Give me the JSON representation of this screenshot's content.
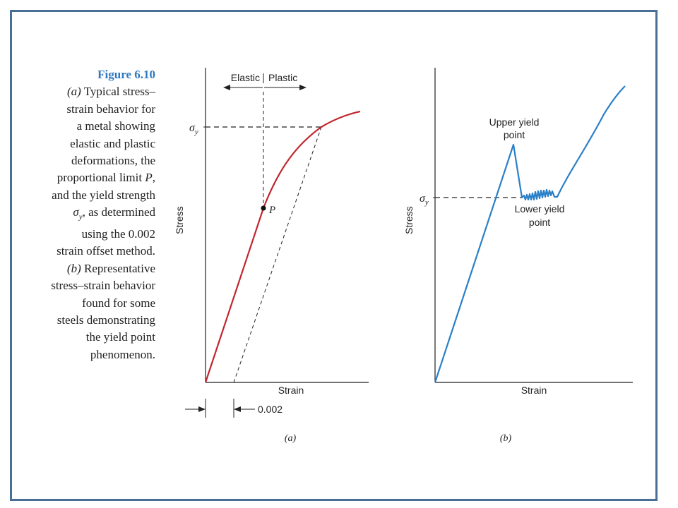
{
  "caption": {
    "figure_label": "Figure 6.10",
    "part_a_letter": "(a)",
    "part_a_text_1": " Typical stress–",
    "lines_a": [
      "strain behavior for",
      "a metal showing",
      "elastic and plastic",
      "deformations, the"
    ],
    "prop_text": "proportional limit ",
    "prop_symbol": "P",
    "prop_comma": ",",
    "yield_line": "and the yield strength",
    "sigma_symbol": "σ",
    "sigma_sub": "y",
    "determined_text": ", as determined",
    "lines_b": [
      "using the 0.002",
      "strain offset method."
    ],
    "part_b_letter": "(b)",
    "part_b_text_1": " Representative",
    "lines_c": [
      "stress–strain behavior",
      "found for some",
      "steels demonstrating",
      "the yield point",
      "phenomenon."
    ]
  },
  "panel_a": {
    "elastic_label": "Elastic",
    "plastic_label": "Plastic",
    "sigma_label": "σ",
    "sigma_sub": "y",
    "p_label": "P",
    "ylabel": "Stress",
    "xlabel": "Strain",
    "offset_label": "0.002",
    "panel_label": "(a)",
    "curve_color": "#c0272d"
  },
  "panel_b": {
    "upper_yield_line1": "Upper yield",
    "upper_yield_line2": "point",
    "lower_yield_line1": "Lower yield",
    "lower_yield_line2": "point",
    "sigma_label": "σ",
    "sigma_sub": "y",
    "ylabel": "Stress",
    "xlabel": "Strain",
    "panel_label": "(b)",
    "curve_color": "#2a7fc9"
  }
}
